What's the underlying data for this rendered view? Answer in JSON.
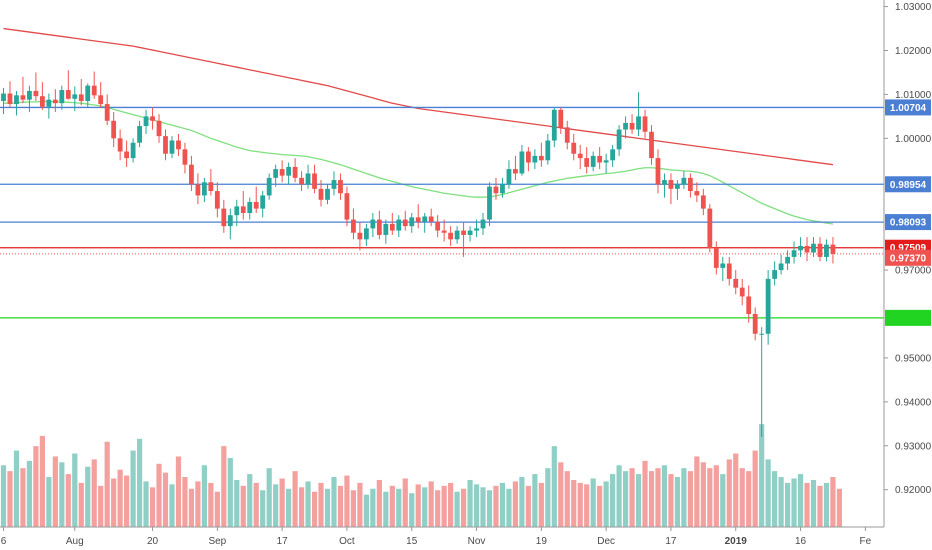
{
  "chart_data": {
    "type": "candlestick",
    "y_axis": {
      "ticks": [
        "1.03000",
        "1.02000",
        "1.01000",
        "1.00000",
        "0.97000",
        "0.95000",
        "0.94000",
        "0.93000",
        "0.92000"
      ],
      "ylim": [
        0.9115,
        1.0315
      ]
    },
    "x_axis": {
      "labels": [
        {
          "text": "6",
          "bold": false
        },
        {
          "text": "Aug",
          "bold": false
        },
        {
          "text": "20",
          "bold": false
        },
        {
          "text": "Sep",
          "bold": false
        },
        {
          "text": "17",
          "bold": false
        },
        {
          "text": "Oct",
          "bold": false
        },
        {
          "text": "15",
          "bold": false
        },
        {
          "text": "Nov",
          "bold": false
        },
        {
          "text": "19",
          "bold": false
        },
        {
          "text": "Dec",
          "bold": false
        },
        {
          "text": "17",
          "bold": false
        },
        {
          "text": "2019",
          "bold": true
        },
        {
          "text": "16",
          "bold": false
        },
        {
          "text": "Fe",
          "bold": false
        }
      ],
      "label_bar_index": [
        0,
        11,
        23,
        33,
        43,
        53,
        63,
        73,
        83,
        93,
        103,
        113,
        123,
        133
      ]
    },
    "horizontal_lines": [
      {
        "price": 1.00704,
        "color": "#4a7fd4",
        "badge": "1.00704",
        "badge_color": "#4a7fd4",
        "text_color": "#ffffff"
      },
      {
        "price": 0.98954,
        "color": "#4a7fd4",
        "badge": "0.98954",
        "badge_color": "#4a7fd4",
        "text_color": "#ffffff"
      },
      {
        "price": 0.98093,
        "color": "#4a7fd4",
        "badge": "0.98093",
        "badge_color": "#4a7fd4",
        "text_color": "#ffffff"
      },
      {
        "price": 0.97509,
        "color": "#e31b1b",
        "badge": "0.97509",
        "badge_color": "#e31b1b",
        "text_color": "#ffffff"
      },
      {
        "price": 0.95912,
        "color": "#22d422",
        "badge": "",
        "badge_color": "#22d422",
        "text_color": "#ffffff"
      }
    ],
    "current_price": {
      "price": 0.9737,
      "badge": "0.97370",
      "color": "#ef5350"
    },
    "candles": [
      [
        1.0085,
        1.0115,
        1.0055,
        1.0102
      ],
      [
        1.0102,
        1.013,
        1.007,
        1.0078
      ],
      [
        1.0078,
        1.0108,
        1.0052,
        1.0098
      ],
      [
        1.0098,
        1.014,
        1.008,
        1.0088
      ],
      [
        1.0088,
        1.012,
        1.006,
        1.0108
      ],
      [
        1.0108,
        1.015,
        1.0085,
        1.0096
      ],
      [
        1.0096,
        1.0128,
        1.0065,
        1.0072
      ],
      [
        1.0072,
        1.0102,
        1.0045,
        1.0088
      ],
      [
        1.0088,
        1.0112,
        1.006,
        1.008
      ],
      [
        1.008,
        1.012,
        1.0065,
        1.011
      ],
      [
        1.011,
        1.0155,
        1.0088,
        1.009
      ],
      [
        1.009,
        1.0118,
        1.0062,
        1.01
      ],
      [
        1.01,
        1.0135,
        1.0075,
        1.0085
      ],
      [
        1.0085,
        1.0125,
        1.007,
        1.012
      ],
      [
        1.012,
        1.0152,
        1.009,
        1.0098
      ],
      [
        1.0098,
        1.0128,
        1.007,
        1.0078
      ],
      [
        1.0078,
        1.01,
        1.003,
        1.004
      ],
      [
        1.004,
        1.006,
        0.998,
        1.0
      ],
      [
        1.0,
        1.002,
        0.995,
        0.997
      ],
      [
        0.997,
        0.9995,
        0.9935,
        0.9955
      ],
      [
        0.9955,
        1.0,
        0.9945,
        0.999
      ],
      [
        0.999,
        1.004,
        0.998,
        1.0028
      ],
      [
        1.0028,
        1.0065,
        1.001,
        1.005
      ],
      [
        1.005,
        1.007,
        1.002,
        1.004
      ],
      [
        1.004,
        1.0055,
        0.999,
        1.0005
      ],
      [
        1.0005,
        1.002,
        0.995,
        0.9965
      ],
      [
        0.9965,
        1.0005,
        0.9955,
        0.9995
      ],
      [
        0.9995,
        1.001,
        0.996,
        0.9975
      ],
      [
        0.9975,
        0.999,
        0.992,
        0.994
      ],
      [
        0.994,
        0.996,
        0.988,
        0.9895
      ],
      [
        0.9895,
        0.992,
        0.985,
        0.987
      ],
      [
        0.987,
        0.991,
        0.9855,
        0.99
      ],
      [
        0.99,
        0.993,
        0.987,
        0.988
      ],
      [
        0.988,
        0.99,
        0.982,
        0.984
      ],
      [
        0.984,
        0.986,
        0.9785,
        0.98
      ],
      [
        0.98,
        0.984,
        0.977,
        0.9825
      ],
      [
        0.9825,
        0.986,
        0.98,
        0.9845
      ],
      [
        0.9845,
        0.988,
        0.9815,
        0.983
      ],
      [
        0.983,
        0.9865,
        0.9815,
        0.9855
      ],
      [
        0.9855,
        0.989,
        0.983,
        0.984
      ],
      [
        0.984,
        0.988,
        0.982,
        0.987
      ],
      [
        0.987,
        0.992,
        0.986,
        0.991
      ],
      [
        0.991,
        0.994,
        0.989,
        0.993
      ],
      [
        0.993,
        0.995,
        0.99,
        0.9915
      ],
      [
        0.9915,
        0.9945,
        0.9895,
        0.9935
      ],
      [
        0.9935,
        0.9955,
        0.99,
        0.991
      ],
      [
        0.991,
        0.9925,
        0.988,
        0.9895
      ],
      [
        0.9895,
        0.994,
        0.9885,
        0.992
      ],
      [
        0.992,
        0.994,
        0.9875,
        0.9885
      ],
      [
        0.9885,
        0.9905,
        0.9845,
        0.986
      ],
      [
        0.986,
        0.9895,
        0.985,
        0.9885
      ],
      [
        0.9885,
        0.9925,
        0.987,
        0.9905
      ],
      [
        0.9905,
        0.992,
        0.986,
        0.9875
      ],
      [
        0.9875,
        0.989,
        0.98,
        0.9815
      ],
      [
        0.9815,
        0.984,
        0.977,
        0.9785
      ],
      [
        0.9785,
        0.981,
        0.9745,
        0.977
      ],
      [
        0.977,
        0.9805,
        0.9755,
        0.9795
      ],
      [
        0.9795,
        0.983,
        0.9775,
        0.9815
      ],
      [
        0.9815,
        0.9835,
        0.977,
        0.978
      ],
      [
        0.978,
        0.9815,
        0.976,
        0.9805
      ],
      [
        0.9805,
        0.983,
        0.978,
        0.979
      ],
      [
        0.979,
        0.9825,
        0.9775,
        0.9815
      ],
      [
        0.9815,
        0.9835,
        0.979,
        0.98
      ],
      [
        0.98,
        0.983,
        0.9785,
        0.982
      ],
      [
        0.982,
        0.985,
        0.9795,
        0.981
      ],
      [
        0.981,
        0.983,
        0.9785,
        0.9822
      ],
      [
        0.9822,
        0.984,
        0.98,
        0.981
      ],
      [
        0.981,
        0.9825,
        0.9775,
        0.979
      ],
      [
        0.979,
        0.9815,
        0.9765,
        0.9785
      ],
      [
        0.9785,
        0.98,
        0.9755,
        0.977
      ],
      [
        0.977,
        0.98,
        0.976,
        0.979
      ],
      [
        0.979,
        0.981,
        0.973,
        0.978
      ],
      [
        0.978,
        0.98,
        0.9765,
        0.979
      ],
      [
        0.979,
        0.9815,
        0.9775,
        0.9795
      ],
      [
        0.9795,
        0.983,
        0.978,
        0.9815
      ],
      [
        0.9815,
        0.99,
        0.98,
        0.989
      ],
      [
        0.989,
        0.991,
        0.986,
        0.9875
      ],
      [
        0.9875,
        0.991,
        0.9865,
        0.9895
      ],
      [
        0.9895,
        0.995,
        0.9885,
        0.993
      ],
      [
        0.993,
        0.996,
        0.9905,
        0.992
      ],
      [
        0.992,
        0.9985,
        0.9915,
        0.997
      ],
      [
        0.997,
        0.998,
        0.9925,
        0.9945
      ],
      [
        0.9945,
        0.9975,
        0.993,
        0.996
      ],
      [
        0.996,
        0.999,
        0.9935,
        0.995
      ],
      [
        0.995,
        1.001,
        0.994,
        0.9995
      ],
      [
        0.9995,
        1.007,
        0.998,
        1.0065
      ],
      [
        1.0065,
        1.007,
        1.001,
        1.0025
      ],
      [
        1.0025,
        1.004,
        0.9975,
        0.999
      ],
      [
        0.999,
        1.001,
        0.995,
        0.9965
      ],
      [
        0.9965,
        0.9985,
        0.993,
        0.9955
      ],
      [
        0.9955,
        0.998,
        0.992,
        0.9935
      ],
      [
        0.9935,
        0.997,
        0.9925,
        0.996
      ],
      [
        0.996,
        0.998,
        0.993,
        0.9945
      ],
      [
        0.9945,
        0.9965,
        0.992,
        0.995
      ],
      [
        0.995,
        0.9985,
        0.9935,
        0.9975
      ],
      [
        0.9975,
        1.003,
        0.996,
        1.002
      ],
      [
        1.002,
        1.005,
        1.0,
        1.0035
      ],
      [
        1.0035,
        1.0055,
        1.001,
        1.002
      ],
      [
        1.002,
        1.0105,
        1.0005,
        1.005
      ],
      [
        1.005,
        1.0065,
        1.0,
        1.0015
      ],
      [
        1.0015,
        1.003,
        0.994,
        0.9955
      ],
      [
        0.9955,
        0.9975,
        0.9875,
        0.9895
      ],
      [
        0.9895,
        0.992,
        0.9865,
        0.9905
      ],
      [
        0.9905,
        0.992,
        0.985,
        0.9885
      ],
      [
        0.9885,
        0.9905,
        0.986,
        0.9895
      ],
      [
        0.9895,
        0.9925,
        0.9885,
        0.991
      ],
      [
        0.991,
        0.992,
        0.9865,
        0.988
      ],
      [
        0.988,
        0.99,
        0.9855,
        0.987
      ],
      [
        0.987,
        0.9885,
        0.9825,
        0.984
      ],
      [
        0.984,
        0.985,
        0.974,
        0.975
      ],
      [
        0.975,
        0.9765,
        0.969,
        0.9705
      ],
      [
        0.9705,
        0.973,
        0.9675,
        0.9715
      ],
      [
        0.9715,
        0.973,
        0.9665,
        0.968
      ],
      [
        0.968,
        0.97,
        0.9645,
        0.966
      ],
      [
        0.966,
        0.968,
        0.962,
        0.964
      ],
      [
        0.964,
        0.9665,
        0.958,
        0.96
      ],
      [
        0.96,
        0.9615,
        0.954,
        0.9555
      ],
      [
        0.9555,
        0.957,
        0.932,
        0.9555
      ],
      [
        0.9555,
        0.97,
        0.953,
        0.968
      ],
      [
        0.968,
        0.972,
        0.9665,
        0.97
      ],
      [
        0.97,
        0.9735,
        0.969,
        0.9715
      ],
      [
        0.9715,
        0.9745,
        0.97,
        0.973
      ],
      [
        0.973,
        0.9765,
        0.9715,
        0.9745
      ],
      [
        0.9745,
        0.9775,
        0.973,
        0.9755
      ],
      [
        0.9755,
        0.9775,
        0.972,
        0.974
      ],
      [
        0.974,
        0.9775,
        0.973,
        0.976
      ],
      [
        0.976,
        0.9775,
        0.972,
        0.973
      ],
      [
        0.973,
        0.977,
        0.972,
        0.9758
      ],
      [
        0.9758,
        0.9775,
        0.9715,
        0.9737
      ]
    ],
    "volumes": [
      0.42,
      0.38,
      0.52,
      0.4,
      0.45,
      0.55,
      0.62,
      0.34,
      0.48,
      0.44,
      0.36,
      0.5,
      0.3,
      0.41,
      0.46,
      0.28,
      0.58,
      0.33,
      0.39,
      0.35,
      0.52,
      0.6,
      0.31,
      0.27,
      0.43,
      0.37,
      0.29,
      0.48,
      0.34,
      0.26,
      0.31,
      0.42,
      0.3,
      0.24,
      0.55,
      0.47,
      0.32,
      0.28,
      0.36,
      0.3,
      0.25,
      0.4,
      0.29,
      0.33,
      0.26,
      0.38,
      0.27,
      0.31,
      0.24,
      0.3,
      0.26,
      0.34,
      0.28,
      0.35,
      0.25,
      0.3,
      0.22,
      0.26,
      0.32,
      0.24,
      0.28,
      0.26,
      0.33,
      0.23,
      0.29,
      0.27,
      0.31,
      0.25,
      0.28,
      0.3,
      0.24,
      0.26,
      0.32,
      0.29,
      0.27,
      0.25,
      0.28,
      0.3,
      0.26,
      0.31,
      0.34,
      0.28,
      0.36,
      0.3,
      0.4,
      0.55,
      0.44,
      0.38,
      0.32,
      0.3,
      0.29,
      0.33,
      0.28,
      0.31,
      0.36,
      0.42,
      0.38,
      0.4,
      0.36,
      0.45,
      0.38,
      0.4,
      0.42,
      0.36,
      0.34,
      0.4,
      0.38,
      0.48,
      0.44,
      0.4,
      0.42,
      0.36,
      0.46,
      0.5,
      0.4,
      0.38,
      0.52,
      0.7,
      0.46,
      0.38,
      0.34,
      0.3,
      0.33,
      0.36,
      0.3,
      0.32,
      0.28,
      0.3,
      0.34,
      0.26
    ],
    "sma_green": [
      1.008,
      1.008,
      1.0081,
      1.0082,
      1.0083,
      1.0083,
      1.0084,
      1.0084,
      1.0083,
      1.0083,
      1.0082,
      1.0081,
      1.008,
      1.0078,
      1.0076,
      1.0074,
      1.007,
      1.0066,
      1.0062,
      1.0058,
      1.0054,
      1.005,
      1.0046,
      1.0042,
      1.0038,
      1.0034,
      1.003,
      1.0026,
      1.0022,
      1.0018,
      1.0012,
      1.0006,
      1.0,
      0.9995,
      0.999,
      0.9985,
      0.998,
      0.9976,
      0.9972,
      0.997,
      0.9968,
      0.9966,
      0.9965,
      0.9963,
      0.9962,
      0.9961,
      0.996,
      0.9958,
      0.9955,
      0.9952,
      0.9948,
      0.9944,
      0.994,
      0.9935,
      0.993,
      0.9925,
      0.992,
      0.9915,
      0.991,
      0.9906,
      0.9902,
      0.9898,
      0.9894,
      0.989,
      0.9887,
      0.9884,
      0.9881,
      0.9878,
      0.9875,
      0.9873,
      0.9871,
      0.9869,
      0.9867,
      0.9866,
      0.9866,
      0.9867,
      0.9869,
      0.9872,
      0.9876,
      0.988,
      0.9884,
      0.9888,
      0.9892,
      0.9896,
      0.99,
      0.9903,
      0.9906,
      0.9909,
      0.9911,
      0.9913,
      0.9915,
      0.9916,
      0.9918,
      0.992,
      0.9921,
      0.9923,
      0.9925,
      0.9928,
      0.9931,
      0.9933,
      0.9933,
      0.9932,
      0.993,
      0.9928,
      0.9927,
      0.9926,
      0.9925,
      0.9923,
      0.992,
      0.9915,
      0.9908,
      0.99,
      0.9892,
      0.9884,
      0.9876,
      0.9868,
      0.986,
      0.9852,
      0.9846,
      0.984,
      0.9834,
      0.9828,
      0.9823,
      0.9819,
      0.9815,
      0.9812,
      0.981,
      0.9807,
      0.9805
    ],
    "sma_red": [
      1.025,
      1.0248,
      1.0246,
      1.0244,
      1.0242,
      1.024,
      1.0238,
      1.0236,
      1.0234,
      1.0232,
      1.023,
      1.0228,
      1.0226,
      1.0224,
      1.0222,
      1.022,
      1.0218,
      1.0216,
      1.0214,
      1.0212,
      1.021,
      1.0207,
      1.0204,
      1.0201,
      1.0198,
      1.0195,
      1.0192,
      1.0189,
      1.0186,
      1.0183,
      1.018,
      1.0177,
      1.0174,
      1.0171,
      1.0168,
      1.0165,
      1.0162,
      1.0159,
      1.0156,
      1.0153,
      1.015,
      1.0147,
      1.0144,
      1.0141,
      1.0138,
      1.0135,
      1.0132,
      1.0129,
      1.0126,
      1.0123,
      1.012,
      1.0116,
      1.0112,
      1.0108,
      1.0104,
      1.01,
      1.0096,
      1.0092,
      1.0088,
      1.0084,
      1.008,
      1.0077,
      1.0074,
      1.0071,
      1.0068,
      1.0066,
      1.0064,
      1.0062,
      1.006,
      1.0058,
      1.0056,
      1.0054,
      1.0052,
      1.005,
      1.0048,
      1.0046,
      1.0044,
      1.0042,
      1.004,
      1.0038,
      1.0036,
      1.0034,
      1.0032,
      1.003,
      1.0028,
      1.0026,
      1.0024,
      1.0022,
      1.002,
      1.0018,
      1.0016,
      1.0014,
      1.0012,
      1.001,
      1.0008,
      1.0006,
      1.0004,
      1.0002,
      1.0,
      0.9998,
      0.9996,
      0.9994,
      0.9992,
      0.999,
      0.9988,
      0.9986,
      0.9984,
      0.9982,
      0.998,
      0.9978,
      0.9976,
      0.9974,
      0.9972,
      0.997,
      0.9968,
      0.9966,
      0.9964,
      0.9962,
      0.996,
      0.9958,
      0.9956,
      0.9954,
      0.9952,
      0.995,
      0.9948,
      0.9946,
      0.9944,
      0.9942,
      0.994
    ],
    "colors": {
      "up": "#26a69a",
      "down": "#ef5350",
      "volume_up": "#8fcfc6",
      "volume_down": "#f3a09e",
      "sma_green": "#7ee07e",
      "sma_red": "#e34a4a",
      "axis_line": "#999999"
    }
  }
}
